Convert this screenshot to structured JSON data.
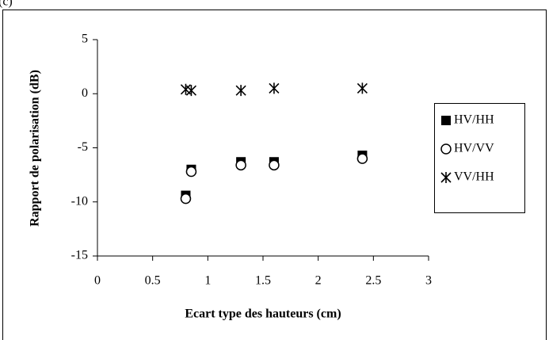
{
  "panel_label": "(c)",
  "chart_data": {
    "type": "scatter",
    "xlabel": "Ecart type des hauteurs (cm)",
    "ylabel": "Rapport de polarisation (dB)",
    "xlim": [
      0,
      3
    ],
    "xticks": [
      0,
      0.5,
      1,
      1.5,
      2,
      2.5,
      3
    ],
    "ylim": [
      -15,
      5
    ],
    "yticks": [
      5,
      0,
      -5,
      -10,
      -15
    ],
    "legend": "right",
    "series": [
      {
        "name": "HV/HH",
        "color": "#000000",
        "marker": "square",
        "x": [
          0.8,
          0.85,
          1.3,
          1.6,
          2.4
        ],
        "values": [
          -9.4,
          -7.0,
          -6.3,
          -6.3,
          -5.7
        ]
      },
      {
        "name": "HV/VV",
        "color": "#000000",
        "marker": "circle",
        "x": [
          0.8,
          0.85,
          1.3,
          1.6,
          2.4
        ],
        "values": [
          -9.7,
          -7.2,
          -6.6,
          -6.6,
          -6.0
        ]
      },
      {
        "name": "VV/HH",
        "color": "#000000",
        "marker": "asterisk",
        "x": [
          0.8,
          0.85,
          1.3,
          1.6,
          2.4
        ],
        "values": [
          0.4,
          0.3,
          0.3,
          0.5,
          0.5
        ]
      }
    ]
  }
}
